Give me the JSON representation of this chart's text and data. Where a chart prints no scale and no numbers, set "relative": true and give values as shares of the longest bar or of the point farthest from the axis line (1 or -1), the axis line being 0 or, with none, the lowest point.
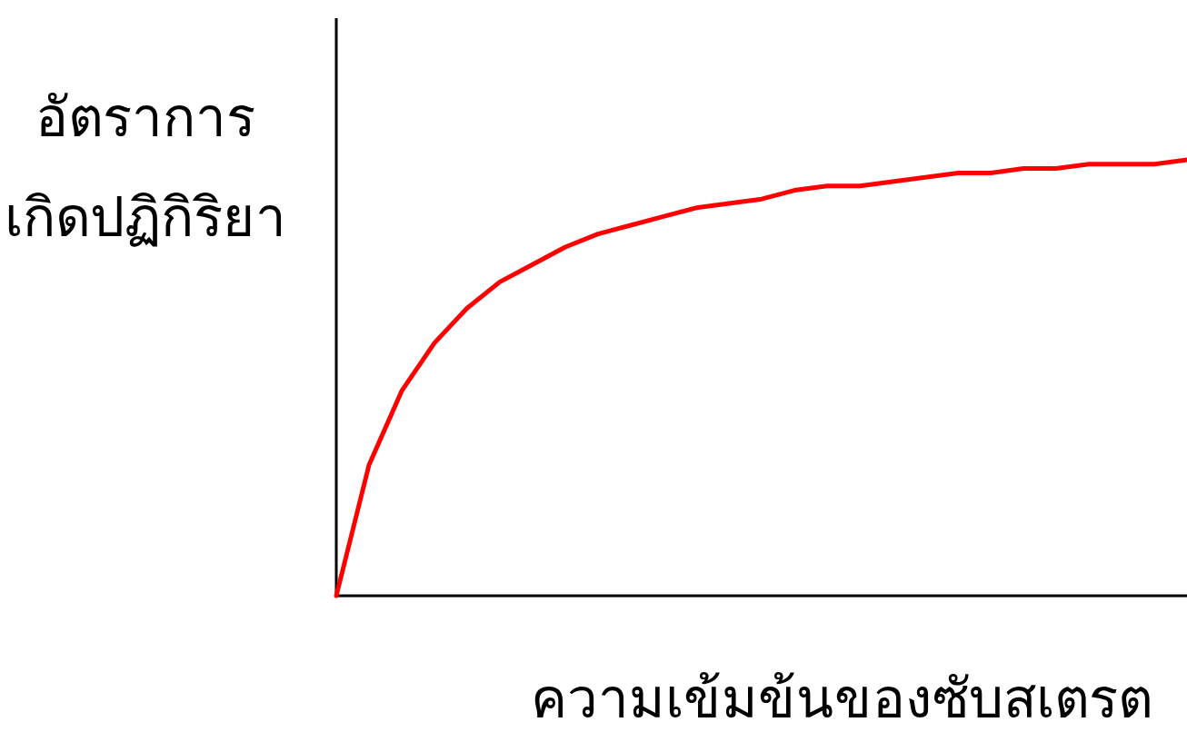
{
  "chart_data": {
    "type": "line",
    "relative": true,
    "xlabel": "ความเข้มข้นของซับสเตรต",
    "ylabel": "อัตราการ\nเกิดปฏิกิริยา",
    "categories": [
      null,
      null,
      null,
      null,
      null,
      null,
      null,
      null,
      null,
      null,
      null,
      null,
      null,
      null,
      null,
      null,
      null,
      null,
      null,
      null,
      null,
      null,
      null,
      null,
      null,
      null,
      null
    ],
    "series": [
      {
        "color": "#ff0000",
        "values": [
          0,
          0.3,
          0.47,
          0.58,
          0.66,
          0.72,
          0.76,
          0.8,
          0.83,
          0.85,
          0.87,
          0.89,
          0.9,
          0.91,
          0.93,
          0.94,
          0.94,
          0.95,
          0.96,
          0.97,
          0.97,
          0.98,
          0.98,
          0.99,
          0.99,
          0.99,
          1
        ]
      }
    ]
  }
}
